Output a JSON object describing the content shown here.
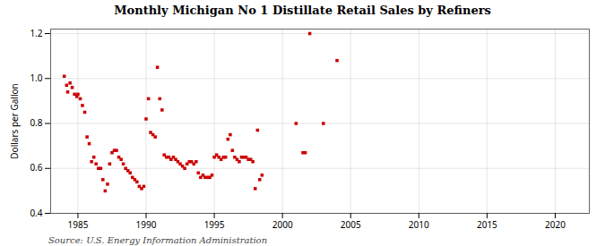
{
  "chart_data": {
    "type": "scatter",
    "title": "Monthly Michigan No 1 Distillate Retail Sales by Refiners",
    "ylabel": "Dollars per Gallon",
    "source": "Source: U.S. Energy Information Administration",
    "color": "#cc0000",
    "marker": "square",
    "grid": true,
    "xlim": [
      1983.0,
      2022.5
    ],
    "ylim": [
      0.4,
      1.22
    ],
    "xticks": [
      1985,
      1990,
      1995,
      2000,
      2005,
      2010,
      2015,
      2020
    ],
    "yticks": [
      0.4,
      0.6,
      0.8,
      {
        "value": 1.0,
        "label": "1.0"
      },
      1.2
    ],
    "x": [
      1984.0,
      1984.17,
      1984.25,
      1984.42,
      1984.58,
      1984.75,
      1984.92,
      1985.0,
      1985.17,
      1985.33,
      1985.5,
      1985.67,
      1985.83,
      1986.0,
      1986.17,
      1986.33,
      1986.5,
      1986.67,
      1986.83,
      1987.0,
      1987.17,
      1987.33,
      1987.5,
      1987.67,
      1987.83,
      1988.0,
      1988.17,
      1988.33,
      1988.5,
      1988.67,
      1988.83,
      1989.0,
      1989.17,
      1989.33,
      1989.5,
      1989.67,
      1989.83,
      1990.0,
      1990.17,
      1990.33,
      1990.5,
      1990.67,
      1990.83,
      1991.0,
      1991.17,
      1991.33,
      1991.5,
      1991.67,
      1991.83,
      1992.0,
      1992.17,
      1992.33,
      1992.5,
      1992.67,
      1992.83,
      1993.0,
      1993.17,
      1993.33,
      1993.5,
      1993.67,
      1993.83,
      1994.0,
      1994.17,
      1994.33,
      1994.5,
      1994.67,
      1994.83,
      1995.0,
      1995.17,
      1995.33,
      1995.5,
      1995.67,
      1995.83,
      1996.0,
      1996.17,
      1996.33,
      1996.5,
      1996.67,
      1996.83,
      1997.0,
      1997.17,
      1997.33,
      1997.5,
      1997.67,
      1997.83,
      1998.0,
      1998.17,
      1998.33,
      1998.5,
      2001.0,
      2001.5,
      2001.67,
      2002.0,
      2003.0,
      2004.0
    ],
    "values": [
      1.01,
      0.97,
      0.94,
      0.98,
      0.96,
      0.93,
      0.92,
      0.93,
      0.91,
      0.88,
      0.85,
      0.74,
      0.71,
      0.63,
      0.65,
      0.62,
      0.6,
      0.6,
      0.55,
      0.5,
      0.53,
      0.62,
      0.67,
      0.68,
      0.68,
      0.65,
      0.64,
      0.62,
      0.6,
      0.59,
      0.58,
      0.56,
      0.55,
      0.54,
      0.52,
      0.51,
      0.52,
      0.82,
      0.91,
      0.76,
      0.75,
      0.74,
      1.05,
      0.91,
      0.86,
      0.66,
      0.65,
      0.65,
      0.64,
      0.65,
      0.64,
      0.63,
      0.62,
      0.61,
      0.6,
      0.62,
      0.63,
      0.63,
      0.62,
      0.63,
      0.58,
      0.56,
      0.57,
      0.56,
      0.56,
      0.56,
      0.57,
      0.65,
      0.66,
      0.65,
      0.64,
      0.65,
      0.65,
      0.73,
      0.75,
      0.68,
      0.65,
      0.64,
      0.63,
      0.65,
      0.65,
      0.65,
      0.64,
      0.64,
      0.63,
      0.51,
      0.77,
      0.55,
      0.57,
      0.8,
      0.67,
      0.67,
      1.2,
      0.8,
      1.08
    ]
  }
}
